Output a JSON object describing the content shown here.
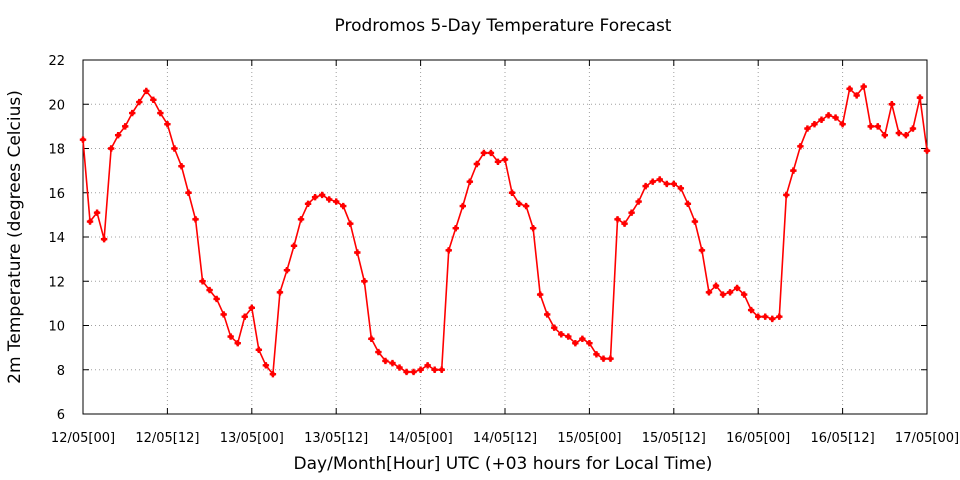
{
  "chart_data": {
    "type": "line",
    "title": "Prodromos 5-Day Temperature Forecast",
    "xlabel": "Day/Month[Hour] UTC (+03 hours for Local Time)",
    "ylabel": "2m Temperature (degrees Celcius)",
    "x_hours_per_step": 1,
    "xlim": [
      0,
      120
    ],
    "ylim": [
      6,
      22
    ],
    "yticks": [
      6,
      8,
      10,
      12,
      14,
      16,
      18,
      20,
      22
    ],
    "xticks": [
      {
        "hour": 0,
        "label": "12/05[00]"
      },
      {
        "hour": 12,
        "label": "12/05[12]"
      },
      {
        "hour": 24,
        "label": "13/05[00]"
      },
      {
        "hour": 36,
        "label": "13/05[12]"
      },
      {
        "hour": 48,
        "label": "14/05[00]"
      },
      {
        "hour": 60,
        "label": "14/05[12]"
      },
      {
        "hour": 72,
        "label": "15/05[00]"
      },
      {
        "hour": 84,
        "label": "15/05[12]"
      },
      {
        "hour": 96,
        "label": "16/05[00]"
      },
      {
        "hour": 108,
        "label": "16/05[12]"
      },
      {
        "hour": 120,
        "label": "17/05[00]"
      }
    ],
    "grid": true,
    "series": [
      {
        "color": "#ff0000",
        "values": [
          18.4,
          14.7,
          15.1,
          13.9,
          18.0,
          18.6,
          19.0,
          19.6,
          20.1,
          20.6,
          20.2,
          19.6,
          19.1,
          18.0,
          17.2,
          16.0,
          14.8,
          12.0,
          11.6,
          11.2,
          10.5,
          9.5,
          9.2,
          10.4,
          10.8,
          8.9,
          8.2,
          7.8,
          11.5,
          12.5,
          13.6,
          14.8,
          15.5,
          15.8,
          15.9,
          15.7,
          15.6,
          15.4,
          14.6,
          13.3,
          12.0,
          9.4,
          8.8,
          8.4,
          8.3,
          8.1,
          7.9,
          7.9,
          8.0,
          8.2,
          8.0,
          8.0,
          13.4,
          14.4,
          15.4,
          16.5,
          17.3,
          17.8,
          17.8,
          17.4,
          17.5,
          16.0,
          15.5,
          15.4,
          14.4,
          11.4,
          10.5,
          9.9,
          9.6,
          9.5,
          9.2,
          9.4,
          9.2,
          8.7,
          8.5,
          8.5,
          14.8,
          14.6,
          15.1,
          15.6,
          16.3,
          16.5,
          16.6,
          16.4,
          16.4,
          16.2,
          15.5,
          14.7,
          13.4,
          11.5,
          11.8,
          11.4,
          11.5,
          11.7,
          11.4,
          10.7,
          10.4,
          10.4,
          10.3,
          10.4,
          15.9,
          17.0,
          18.1,
          18.9,
          19.1,
          19.3,
          19.5,
          19.4,
          19.1,
          20.7,
          20.4,
          20.8,
          19.0,
          19.0,
          18.6,
          20.0,
          18.7,
          18.6,
          18.9,
          20.3,
          17.9
        ]
      }
    ]
  }
}
